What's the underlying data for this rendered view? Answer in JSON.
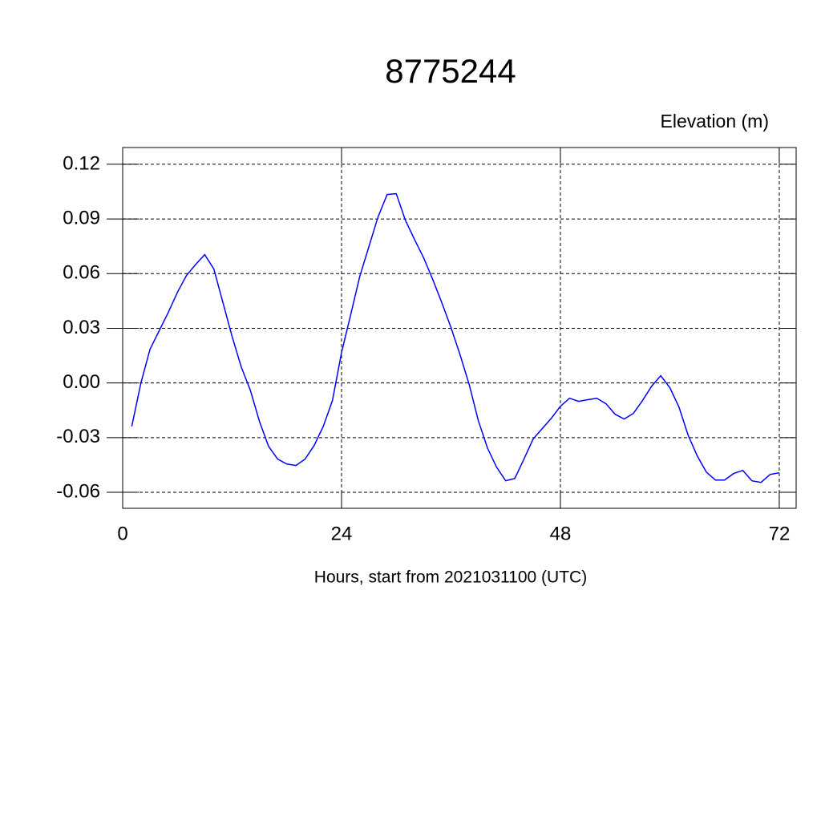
{
  "chart_data": {
    "type": "line",
    "title": "8775244",
    "y_label": "Elevation (m)",
    "x_label": "Hours, start from 2021031100 (UTC)",
    "x": [
      1,
      2,
      3,
      4,
      5,
      6,
      7,
      8,
      9,
      10,
      11,
      12,
      13,
      14,
      15,
      16,
      17,
      18,
      19,
      20,
      21,
      22,
      23,
      24,
      25,
      26,
      27,
      28,
      29,
      30,
      31,
      32,
      33,
      34,
      35,
      36,
      37,
      38,
      39,
      40,
      41,
      42,
      43,
      44,
      45,
      46,
      47,
      48,
      49,
      50,
      51,
      52,
      53,
      54,
      55,
      56,
      57,
      58,
      59,
      60,
      61,
      62,
      63,
      64,
      65,
      66,
      67,
      68,
      69,
      70,
      71,
      72
    ],
    "series": [
      {
        "color": "#0000ff",
        "values": [
          -0.0238,
          0.0,
          0.0185,
          0.0286,
          0.0387,
          0.0497,
          0.059,
          0.065,
          0.0704,
          0.0625,
          0.044,
          0.0255,
          0.0088,
          -0.004,
          -0.0211,
          -0.0348,
          -0.0418,
          -0.0445,
          -0.0453,
          -0.0418,
          -0.0343,
          -0.0238,
          -0.0097,
          0.0167,
          0.0374,
          0.0585,
          0.0748,
          0.0911,
          0.1034,
          0.1039,
          0.0893,
          0.0788,
          0.0687,
          0.0568,
          0.044,
          0.0304,
          0.0154,
          -0.0009,
          -0.0207,
          -0.0357,
          -0.0462,
          -0.0537,
          -0.0524,
          -0.0418,
          -0.0308,
          -0.0251,
          -0.0194,
          -0.0128,
          -0.0084,
          -0.0101,
          -0.0092,
          -0.0084,
          -0.0114,
          -0.0172,
          -0.0198,
          -0.0167,
          -0.0097,
          -0.0018,
          0.004,
          -0.0026,
          -0.0132,
          -0.0286,
          -0.04,
          -0.0489,
          -0.0533,
          -0.0533,
          -0.0497,
          -0.048,
          -0.0537,
          -0.0546,
          -0.0502,
          -0.0493
        ]
      }
    ],
    "xlim": [
      0,
      73.85
    ],
    "xticks": [
      0,
      24,
      48,
      72
    ],
    "ylim": [
      -0.0688,
      0.1292
    ],
    "yticks": [
      0.12,
      0.09,
      0.06,
      0.03,
      {
        "value": 0,
        "label": "0.00"
      },
      -0.03,
      -0.06
    ],
    "grid": true
  }
}
